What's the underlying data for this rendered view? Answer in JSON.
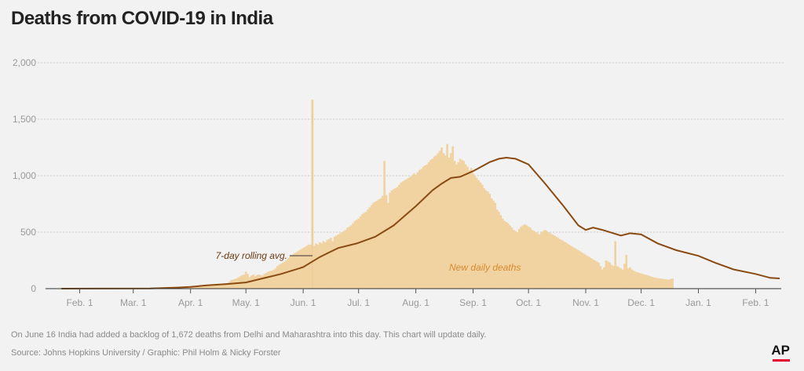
{
  "title": "Deaths from COVID-19 in India",
  "note": "On June 16 India had added a backlog of 1,672 deaths from Delhi and Maharashtra into this day. This chart will update daily.",
  "source": "Source: Johns Hopkins University / Graphic: Phil Holm & Nicky Forster",
  "logo": "AP",
  "colors": {
    "bars": "#f1d3a2",
    "spike": "#efcf99",
    "line": "#8a4b12",
    "background": "#f2f2f2",
    "grid": "#c9c9c9",
    "logo_accent": "#e4002b"
  },
  "chart_data": {
    "type": "bar",
    "title": "Deaths from COVID-19 in India",
    "x_axis": {
      "tick_labels": [
        "Feb. 1",
        "Mar. 1",
        "Apr. 1",
        "May. 1",
        "Jun. 1",
        "Jul. 1",
        "Aug. 1",
        "Sep. 1",
        "Oct. 1",
        "Nov. 1",
        "Dec. 1",
        "Jan. 1",
        "Feb. 1"
      ],
      "range": [
        "2020-01-22",
        "2021-02-14"
      ]
    },
    "y_axis": {
      "ticks": [
        0,
        500,
        1000,
        1500,
        2000
      ],
      "tick_labels": [
        "0",
        "500",
        "1,000",
        "1,500",
        "2,000"
      ],
      "ylim": [
        0,
        2000
      ]
    },
    "grid": true,
    "annotations": {
      "rolling_avg": "7-day rolling avg.",
      "daily": "New daily deaths"
    },
    "series": [
      {
        "name": "New daily deaths",
        "kind": "bar",
        "start": "2020-01-22",
        "values": [
          0,
          0,
          0,
          0,
          0,
          0,
          0,
          0,
          0,
          0,
          0,
          0,
          0,
          0,
          0,
          0,
          0,
          0,
          0,
          0,
          0,
          0,
          0,
          0,
          0,
          0,
          0,
          0,
          0,
          0,
          0,
          0,
          0,
          0,
          0,
          0,
          0,
          0,
          0,
          0,
          0,
          0,
          0,
          0,
          0,
          0,
          0,
          0,
          0,
          0,
          0,
          1,
          0,
          0,
          1,
          1,
          2,
          2,
          1,
          0,
          1,
          3,
          4,
          2,
          6,
          4,
          4,
          6,
          8,
          6,
          8,
          12,
          10,
          14,
          18,
          22,
          27,
          30,
          28,
          32,
          35,
          37,
          35,
          38,
          40,
          42,
          40,
          45,
          46,
          48,
          50,
          60,
          75,
          80,
          85,
          90,
          100,
          110,
          120,
          125,
          150,
          130,
          100,
          115,
          125,
          110,
          120,
          125,
          120,
          115,
          130,
          140,
          150,
          155,
          160,
          165,
          180,
          200,
          210,
          220,
          230,
          240,
          250,
          270,
          290,
          300,
          310,
          320,
          330,
          340,
          350,
          360,
          370,
          380,
          390,
          390,
          1672,
          380,
          400,
          390,
          410,
          400,
          420,
          410,
          430,
          440,
          450,
          420,
          460,
          470,
          480,
          490,
          500,
          510,
          520,
          540,
          550,
          560,
          580,
          600,
          610,
          620,
          640,
          660,
          670,
          680,
          700,
          720,
          740,
          760,
          770,
          780,
          790,
          800,
          820,
          1130,
          830,
          760,
          850,
          870,
          880,
          890,
          900,
          920,
          940,
          950,
          960,
          970,
          980,
          990,
          1000,
          1020,
          1010,
          1030,
          1050,
          1060,
          1080,
          1090,
          1100,
          1120,
          1140,
          1150,
          1170,
          1180,
          1200,
          1220,
          1250,
          1200,
          1180,
          1280,
          1160,
          1200,
          1260,
          1130,
          1100,
          1120,
          1150,
          1140,
          1130,
          1100,
          1080,
          1050,
          1070,
          1020,
          1000,
          980,
          960,
          940,
          920,
          890,
          870,
          860,
          840,
          800,
          780,
          760,
          700,
          680,
          650,
          620,
          600,
          590,
          580,
          560,
          540,
          520,
          510,
          500,
          530,
          550,
          560,
          570,
          560,
          550,
          540,
          520,
          510,
          500,
          490,
          480,
          500,
          510,
          520,
          510,
          500,
          490,
          480,
          470,
          460,
          450,
          440,
          430,
          420,
          410,
          400,
          390,
          380,
          370,
          360,
          350,
          340,
          330,
          320,
          310,
          300,
          290,
          280,
          270,
          260,
          250,
          240,
          230,
          200,
          170,
          190,
          250,
          240,
          230,
          210,
          200,
          420,
          200,
          190,
          180,
          170,
          220,
          300,
          180,
          190,
          170,
          160,
          150,
          145,
          140,
          135,
          130,
          125,
          120,
          115,
          110,
          105,
          100,
          95,
          92,
          90,
          88,
          86,
          84,
          82,
          80,
          85,
          90
        ]
      },
      {
        "name": "7-day rolling avg.",
        "kind": "line",
        "points": [
          [
            "2020-01-22",
            0
          ],
          [
            "2020-03-10",
            2
          ],
          [
            "2020-03-25",
            10
          ],
          [
            "2020-04-01",
            15
          ],
          [
            "2020-04-10",
            30
          ],
          [
            "2020-04-20",
            40
          ],
          [
            "2020-05-01",
            55
          ],
          [
            "2020-05-10",
            90
          ],
          [
            "2020-05-20",
            130
          ],
          [
            "2020-06-01",
            190
          ],
          [
            "2020-06-10",
            280
          ],
          [
            "2020-06-15",
            320
          ],
          [
            "2020-06-20",
            360
          ],
          [
            "2020-06-30",
            400
          ],
          [
            "2020-07-10",
            460
          ],
          [
            "2020-07-20",
            560
          ],
          [
            "2020-07-27",
            660
          ],
          [
            "2020-08-01",
            730
          ],
          [
            "2020-08-10",
            870
          ],
          [
            "2020-08-15",
            930
          ],
          [
            "2020-08-20",
            980
          ],
          [
            "2020-08-25",
            990
          ],
          [
            "2020-09-01",
            1040
          ],
          [
            "2020-09-10",
            1120
          ],
          [
            "2020-09-15",
            1150
          ],
          [
            "2020-09-19",
            1160
          ],
          [
            "2020-09-24",
            1150
          ],
          [
            "2020-10-01",
            1100
          ],
          [
            "2020-10-10",
            930
          ],
          [
            "2020-10-20",
            730
          ],
          [
            "2020-10-28",
            560
          ],
          [
            "2020-11-01",
            520
          ],
          [
            "2020-11-05",
            540
          ],
          [
            "2020-11-10",
            520
          ],
          [
            "2020-11-20",
            470
          ],
          [
            "2020-11-25",
            490
          ],
          [
            "2020-12-01",
            480
          ],
          [
            "2020-12-10",
            400
          ],
          [
            "2020-12-20",
            340
          ],
          [
            "2021-01-01",
            290
          ],
          [
            "2021-01-10",
            230
          ],
          [
            "2021-01-20",
            170
          ],
          [
            "2021-02-01",
            130
          ],
          [
            "2021-02-09",
            95
          ],
          [
            "2021-02-14",
            90
          ]
        ]
      }
    ]
  }
}
